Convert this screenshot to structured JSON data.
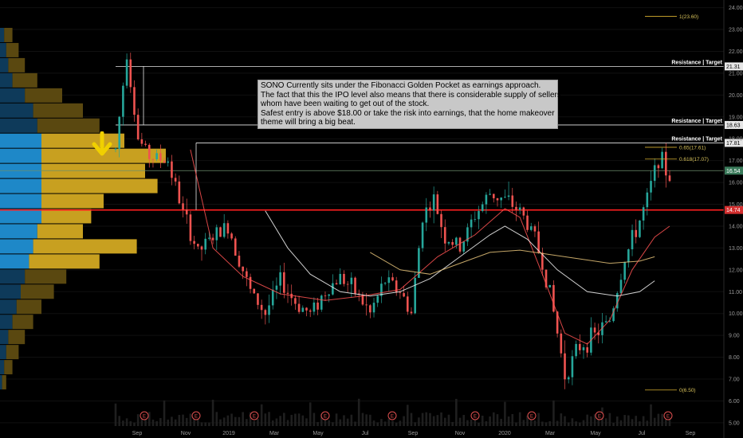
{
  "chart_data": {
    "type": "candlestick",
    "title": "",
    "xlabel": "",
    "ylabel": "",
    "ylim": [
      4.85,
      24.35
    ],
    "y_ticks": [
      5,
      6,
      7,
      8,
      9,
      10,
      11,
      12,
      13,
      14,
      15,
      16,
      17,
      18,
      19,
      20,
      21,
      22,
      23,
      24
    ],
    "x_ticks": [
      "Sep",
      "Nov",
      "2019",
      "Mar",
      "May",
      "Jul",
      "Sep",
      "Nov",
      "2020",
      "Mar",
      "May",
      "Jul",
      "Sep"
    ],
    "price_path": [
      [
        0,
        17.5
      ],
      [
        3,
        22.0
      ],
      [
        6,
        18.0
      ],
      [
        9,
        17.2
      ],
      [
        14,
        17.0
      ],
      [
        18,
        14.6
      ],
      [
        22,
        12.8
      ],
      [
        26,
        13.5
      ],
      [
        30,
        14.0
      ],
      [
        33,
        12.5
      ],
      [
        36,
        11.0
      ],
      [
        40,
        10.0
      ],
      [
        44,
        11.5
      ],
      [
        48,
        10.5
      ],
      [
        52,
        10.0
      ],
      [
        56,
        11.0
      ],
      [
        60,
        11.7
      ],
      [
        64,
        11.0
      ],
      [
        68,
        10.0
      ],
      [
        72,
        11.5
      ],
      [
        76,
        11.0
      ],
      [
        79,
        10.0
      ],
      [
        82,
        14.5
      ],
      [
        85,
        15.2
      ],
      [
        88,
        13.5
      ],
      [
        92,
        13.0
      ],
      [
        96,
        14.5
      ],
      [
        100,
        15.5
      ],
      [
        104,
        15.2
      ],
      [
        108,
        14.7
      ],
      [
        112,
        13.5
      ],
      [
        116,
        11.0
      ],
      [
        120,
        7.2
      ],
      [
        124,
        8.5
      ],
      [
        128,
        9.0
      ],
      [
        132,
        9.7
      ],
      [
        136,
        12.5
      ],
      [
        139,
        13.8
      ],
      [
        142,
        15.2
      ],
      [
        145,
        17.2
      ],
      [
        148,
        16.2
      ]
    ],
    "overlays": [
      {
        "name": "",
        "color": "#ff5252",
        "points": [
          [
            20,
            17.5
          ],
          [
            26,
            13.0
          ],
          [
            34,
            11.7
          ],
          [
            44,
            10.9
          ],
          [
            56,
            10.6
          ],
          [
            66,
            10.8
          ],
          [
            76,
            11.1
          ],
          [
            86,
            12.6
          ],
          [
            96,
            13.6
          ],
          [
            104,
            14.8
          ],
          [
            108,
            14.4
          ],
          [
            114,
            11.8
          ],
          [
            120,
            9.1
          ],
          [
            126,
            8.6
          ],
          [
            132,
            9.7
          ],
          [
            138,
            12.0
          ],
          [
            144,
            13.5
          ],
          [
            148,
            14.0
          ]
        ]
      },
      {
        "name": "",
        "color": "#f5f5f5",
        "points": [
          [
            40,
            14.7
          ],
          [
            46,
            13.0
          ],
          [
            52,
            11.8
          ],
          [
            60,
            11.0
          ],
          [
            68,
            10.8
          ],
          [
            76,
            11.0
          ],
          [
            84,
            11.6
          ],
          [
            92,
            12.6
          ],
          [
            100,
            13.6
          ],
          [
            104,
            14.0
          ],
          [
            110,
            13.4
          ],
          [
            118,
            12.0
          ],
          [
            126,
            11.0
          ],
          [
            134,
            10.8
          ],
          [
            140,
            11.0
          ],
          [
            144,
            11.5
          ]
        ]
      },
      {
        "name": "",
        "color": "#e8c47a",
        "points": [
          [
            68,
            12.8
          ],
          [
            76,
            12.0
          ],
          [
            84,
            11.8
          ],
          [
            92,
            12.3
          ],
          [
            100,
            12.8
          ],
          [
            108,
            12.9
          ],
          [
            116,
            12.7
          ],
          [
            124,
            12.5
          ],
          [
            132,
            12.3
          ],
          [
            140,
            12.4
          ],
          [
            144,
            12.6
          ]
        ]
      }
    ],
    "horizontal_lines": [
      {
        "value": 21.31,
        "color": "#e6e6e6",
        "label": "Resistance | Target",
        "price_label": "21.31"
      },
      {
        "value": 18.63,
        "color": "#e6e6e6",
        "label": "Resistance | Target",
        "price_label": "18.63"
      },
      {
        "value": 17.81,
        "color": "#e6e6e6",
        "label": "Resistance | Target",
        "price_label": "17.81"
      },
      {
        "value": 16.54,
        "color": "#6b8e6b",
        "label": "",
        "price_label": "16.54"
      },
      {
        "value": 14.74,
        "color": "#ff1e1e",
        "label": "",
        "price_label": "14.74"
      }
    ],
    "fib_levels": [
      {
        "label": "1(23.60)",
        "value": 23.6
      },
      {
        "label": "0.65(17.61)",
        "value": 17.61
      },
      {
        "label": "0.618(17.07)",
        "value": 17.07
      },
      {
        "label": "0(6.50)",
        "value": 6.5
      }
    ],
    "volume_profile": {
      "blue": [
        0.1,
        0.15,
        0.2,
        0.3,
        0.6,
        0.8,
        0.9,
        1,
        1,
        1,
        1,
        1,
        1,
        0.9,
        0.8,
        0.7,
        0.6,
        0.5,
        0.4,
        0.3,
        0.2,
        0.15,
        0.1,
        0.05
      ],
      "yellow": [
        0.2,
        0.3,
        0.4,
        0.6,
        0.9,
        1.2,
        1.5,
        2,
        3,
        2.5,
        2.8,
        1.5,
        1.2,
        1.1,
        2.5,
        1.7,
        1.0,
        0.8,
        0.6,
        0.5,
        0.4,
        0.3,
        0.2,
        0.1
      ]
    },
    "earnings_markers": [
      "E",
      "E",
      "E",
      "E",
      "E",
      "E",
      "E",
      "E",
      "E",
      "E",
      "E"
    ],
    "annotation": [
      "SONO Currently sits under the Fibonacci Golden Pocket as earnings approach.",
      "The fact that this the IPO level also means that there is considerable supply of sellers,",
      "whom have been waiting to get out of the stock.",
      "Safest entry is above $18.00 or take the risk into earnings, that the home makeover",
      "theme will bring a big beat."
    ]
  },
  "colors": {
    "background": "#000000",
    "candle_up": "#26a69a",
    "candle_down": "#ef5350",
    "profile_blue": "#1e88c8",
    "profile_yellow": "#c8a020",
    "arrow": "#f0d000",
    "fib": "#d8b030"
  }
}
